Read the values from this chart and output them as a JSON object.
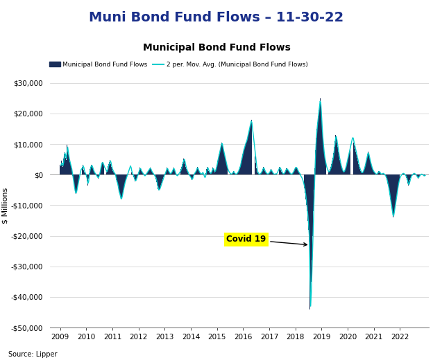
{
  "title_main": "Muni Bond Fund Flows – 11-30-22",
  "title_chart": "Municipal Bond Fund Flows",
  "legend_bar": "Municipal Bond Fund Flows",
  "legend_line": "2 per. Mov. Avg. (Municipal Bond Fund Flows)",
  "ylabel": "$ Millions",
  "source": "Source: Lipper",
  "bar_color": "#1a2f5a",
  "line_color": "#00cccc",
  "annotation_text": "Covid 19",
  "annotation_bg": "#ffff00",
  "ylim": [
    -50000,
    30000
  ],
  "yticks": [
    -50000,
    -40000,
    -30000,
    -20000,
    -10000,
    0,
    10000,
    20000,
    30000
  ],
  "ytick_labels": [
    "-$50,000",
    "-$40,000",
    "-$30,000",
    "-$20,000",
    "-$10,000",
    "$0",
    "$10,000",
    "$20,000",
    "$30,000"
  ],
  "background_color": "#ffffff",
  "title_main_color": "#1a2f8a",
  "title_main_fontsize": 14,
  "chart_title_fontsize": 10,
  "weekly_data": [
    3200,
    2800,
    4500,
    3100,
    2600,
    5200,
    6800,
    7200,
    5500,
    4800,
    9800,
    8200,
    6500,
    5200,
    4100,
    3500,
    2200,
    1800,
    -500,
    -1200,
    -3200,
    -4500,
    -5800,
    -6200,
    -5500,
    -4200,
    -3100,
    -1800,
    -800,
    500,
    1200,
    2100,
    1800,
    2500,
    3200,
    1500,
    800,
    500,
    -200,
    -800,
    -2200,
    -3500,
    -1200,
    500,
    1800,
    2500,
    3200,
    2800,
    2100,
    1500,
    800,
    500,
    300,
    -200,
    -500,
    -800,
    -1200,
    -500,
    200,
    1200,
    2500,
    3500,
    4200,
    3800,
    3200,
    2500,
    2100,
    1800,
    1200,
    800,
    1500,
    2800,
    3500,
    4200,
    4800,
    3500,
    2500,
    1800,
    1200,
    800,
    500,
    200,
    -500,
    -1800,
    -2500,
    -3200,
    -4500,
    -5800,
    -6200,
    -7500,
    -8200,
    -7500,
    -6500,
    -5200,
    -4200,
    -3100,
    -2200,
    -1500,
    -800,
    -200,
    500,
    1200,
    1800,
    2500,
    3200,
    1500,
    800,
    200,
    -200,
    -800,
    -1500,
    -2200,
    -1800,
    -1200,
    -500,
    200,
    800,
    1500,
    2200,
    1800,
    1200,
    800,
    500,
    200,
    -200,
    -500,
    -200,
    200,
    500,
    800,
    1200,
    1500,
    1800,
    2200,
    1800,
    1200,
    800,
    500,
    200,
    -200,
    -500,
    -800,
    -1500,
    -2500,
    -3500,
    -4800,
    -5200,
    -4800,
    -4200,
    -3500,
    -2800,
    -2200,
    -1500,
    -800,
    -200,
    200,
    800,
    1500,
    2200,
    1800,
    1200,
    800,
    500,
    200,
    500,
    800,
    1200,
    1800,
    2200,
    1500,
    800,
    200,
    -200,
    -500,
    -200,
    200,
    500,
    800,
    1200,
    1800,
    2500,
    3500,
    4200,
    5200,
    4800,
    3500,
    2500,
    1800,
    1200,
    800,
    200,
    -200,
    -500,
    -800,
    -1200,
    -1800,
    -1200,
    -500,
    200,
    500,
    800,
    1200,
    1800,
    2500,
    1800,
    1200,
    800,
    500,
    200,
    200,
    500,
    800,
    200,
    -500,
    -1200,
    -500,
    500,
    1800,
    2500,
    1800,
    1200,
    800,
    500,
    300,
    800,
    1500,
    2200,
    1800,
    1200,
    800,
    1500,
    2200,
    3200,
    4500,
    5500,
    6500,
    7500,
    8500,
    9500,
    10500,
    9800,
    8500,
    7500,
    6500,
    5500,
    4500,
    3500,
    2500,
    1800,
    1200,
    800,
    500,
    300,
    100,
    300,
    500,
    800,
    1200,
    500,
    200,
    100,
    200,
    500,
    800,
    1200,
    1800,
    2500,
    3200,
    4500,
    5500,
    6500,
    7500,
    8500,
    9000,
    10000,
    10500,
    11000,
    12000,
    13000,
    14000,
    15000,
    16000,
    17000,
    18000,
    16000,
    14000,
    12000,
    10000,
    8000,
    6000,
    4000,
    2000,
    1000,
    500,
    200,
    100,
    200,
    500,
    800,
    1200,
    1800,
    2500,
    1800,
    1200,
    800,
    500,
    300,
    100,
    300,
    500,
    800,
    1200,
    1800,
    1200,
    800,
    500,
    200,
    100,
    200,
    300,
    200,
    500,
    1000,
    1500,
    2000,
    2500,
    2000,
    1500,
    1000,
    500,
    200,
    300,
    500,
    1000,
    1500,
    2000,
    1800,
    1500,
    1200,
    800,
    500,
    300,
    100,
    200,
    500,
    800,
    1200,
    1800,
    2200,
    2500,
    2200,
    1800,
    1200,
    800,
    500,
    300,
    -500,
    -800,
    -1200,
    -1800,
    -2500,
    -3500,
    -4500,
    -6000,
    -8000,
    -10000,
    -12000,
    -15000,
    -18000,
    -22000,
    -44000,
    -42000,
    -35000,
    -28000,
    -20000,
    -12000,
    -5000,
    2000,
    8000,
    12000,
    15000,
    17000,
    19000,
    21000,
    23000,
    25000,
    22000,
    18000,
    14000,
    11000,
    8500,
    6500,
    5000,
    3800,
    2800,
    2000,
    1500,
    1000,
    800,
    1200,
    1800,
    2500,
    3500,
    4500,
    5500,
    7000,
    9000,
    11000,
    13000,
    12000,
    10500,
    9000,
    7500,
    6000,
    4800,
    3800,
    2800,
    2000,
    1500,
    1000,
    800,
    1200,
    1800,
    2500,
    3500,
    4500,
    5500,
    6500,
    7500,
    8500,
    9500,
    10500,
    11500,
    12500,
    11500,
    10500,
    9500,
    8500,
    7500,
    6500,
    5500,
    4500,
    3500,
    2500,
    1800,
    1200,
    800,
    500,
    800,
    1200,
    1800,
    2500,
    3500,
    4500,
    5500,
    6500,
    7500,
    6500,
    5500,
    4500,
    3500,
    2800,
    2000,
    1500,
    1000,
    800,
    500,
    300,
    100,
    200,
    500,
    800,
    1200,
    800,
    500,
    200,
    100,
    300,
    500,
    300,
    100,
    -200,
    -500,
    -1000,
    -1800,
    -2800,
    -3800,
    -5000,
    -6500,
    -8000,
    -9500,
    -11000,
    -12500,
    -14000,
    -13000,
    -11500,
    -10000,
    -8500,
    -7000,
    -5500,
    -4000,
    -2800,
    -1800,
    -1000,
    -500,
    -200,
    100,
    300,
    500,
    300,
    100,
    -200,
    -500,
    -1000,
    -1800,
    -2800,
    -3500,
    -2800,
    -1800,
    -1000,
    -500,
    -200,
    100,
    300,
    500,
    300,
    100,
    -200,
    -500,
    -800,
    -1200,
    -800,
    -500,
    -200,
    100,
    200,
    100,
    -100,
    -300,
    -500,
    -300,
    -100
  ]
}
